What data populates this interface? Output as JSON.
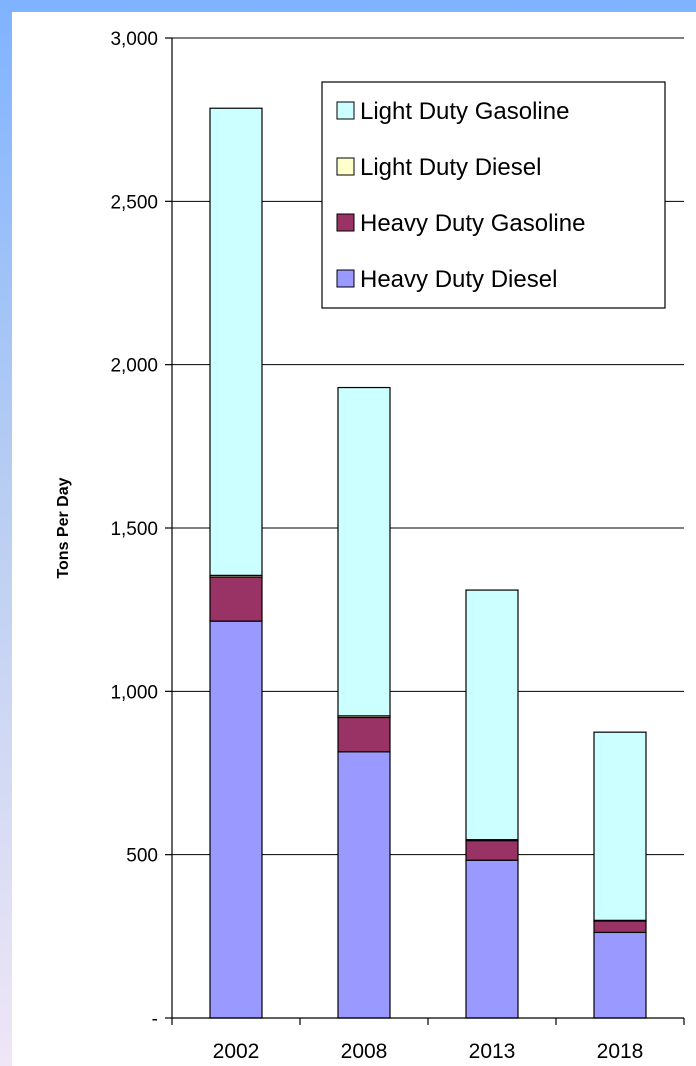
{
  "chart_data": {
    "type": "bar",
    "stacked": true,
    "title": "",
    "xlabel": "",
    "ylabel": "Tons Per Day",
    "ylim": [
      0,
      3000
    ],
    "yticks": [
      0,
      500,
      1000,
      1500,
      2000,
      2500,
      3000
    ],
    "ytick_labels": [
      "-",
      "500",
      "1,000",
      "1,500",
      "2,000",
      "2,500",
      "3,000"
    ],
    "categories": [
      "2002",
      "2008",
      "2013",
      "2018"
    ],
    "series": [
      {
        "name": "Heavy Duty Diesel",
        "color": "#9999ff",
        "values": [
          1215,
          815,
          483,
          262
        ]
      },
      {
        "name": "Heavy Duty Gasoline",
        "color": "#993366",
        "values": [
          135,
          105,
          60,
          35
        ]
      },
      {
        "name": "Light Duty Diesel",
        "color": "#ffffcc",
        "values": [
          5,
          5,
          3,
          2
        ]
      },
      {
        "name": "Light Duty Gasoline",
        "color": "#ccffff",
        "values": [
          1430,
          1005,
          764,
          576
        ]
      }
    ],
    "legend_order": [
      "Light Duty Gasoline",
      "Light Duty Diesel",
      "Heavy Duty Gasoline",
      "Heavy Duty Diesel"
    ],
    "legend_position": "top-right",
    "grid": true
  }
}
